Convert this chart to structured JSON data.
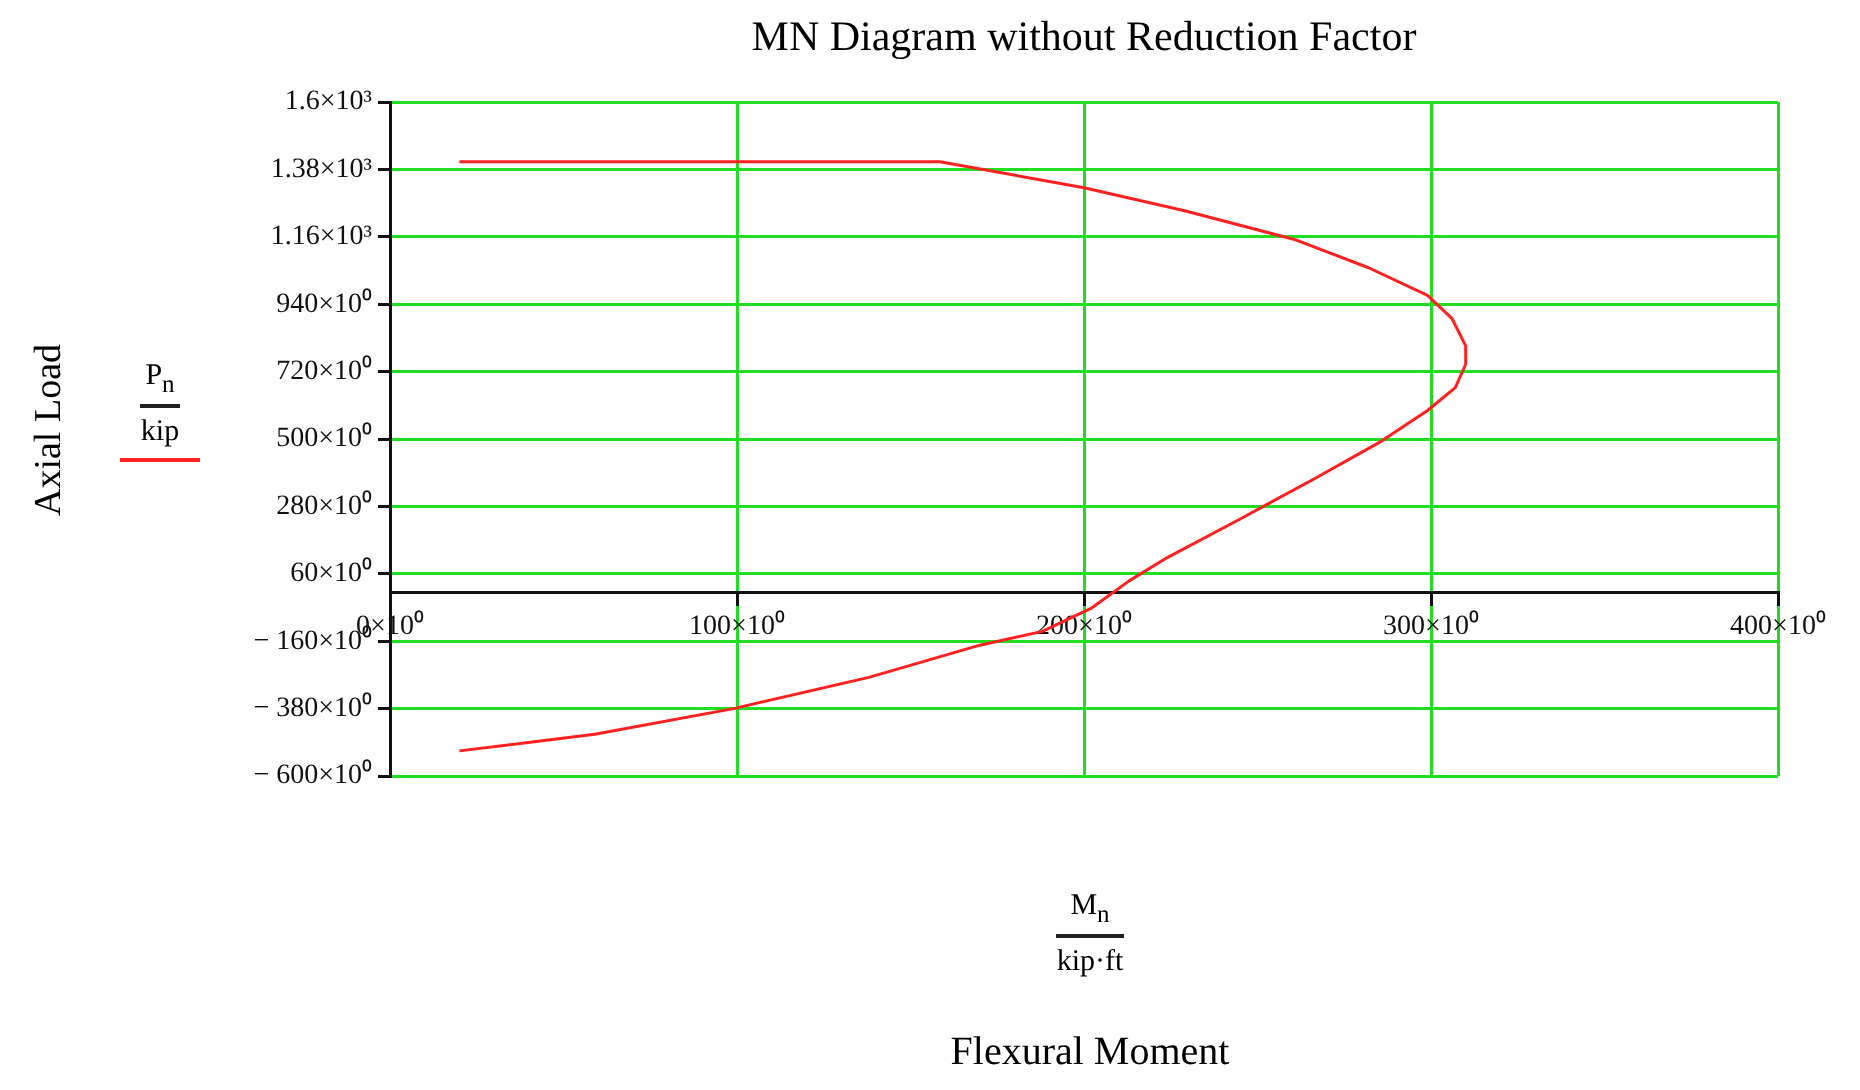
{
  "chart_data": {
    "type": "line",
    "title": "MN Diagram without Reduction Factor",
    "ylabel": "Axial Load",
    "annotations": [
      "kip",
      "M$_{n}$",
      "kip·ft",
      "Flexural Moment"
    ],
    "series": [
      {
        "name": "P$_{n}$",
        "color": "#ff2020",
        "x": [
          20,
          158.5,
          200,
          229,
          261,
          282,
          299,
          306,
          310,
          310,
          307,
          299,
          285,
          266,
          245,
          224,
          213,
          202,
          188,
          170,
          138,
          99,
          59,
          20
        ],
        "values": [
          1405,
          1405,
          1320,
          1245,
          1150,
          1059,
          969,
          894,
          804,
          744,
          668,
          593,
          488,
          368,
          239,
          113,
          37,
          -53,
          -128,
          -173,
          -278,
          -380,
          -464,
          -518
        ]
      }
    ],
    "xlim": [
      0,
      400
    ],
    "xticks": [
      {
        "value": 0,
        "label": "0×10⁰"
      },
      {
        "value": 100,
        "label": "100×10⁰"
      },
      {
        "value": 200,
        "label": "200×10⁰"
      },
      {
        "value": 300,
        "label": "300×10⁰"
      },
      {
        "value": 400,
        "label": "400×10⁰"
      }
    ],
    "ylim": [
      -600,
      1600
    ],
    "yticks": [
      {
        "value": -600,
        "label": "− 600×10⁰"
      },
      {
        "value": -380,
        "label": "− 380×10⁰"
      },
      {
        "value": -160,
        "label": "− 160×10⁰"
      },
      {
        "value": 60,
        "label": "60×10⁰"
      },
      {
        "value": 280,
        "label": "280×10⁰"
      },
      {
        "value": 500,
        "label": "500×10⁰"
      },
      {
        "value": 720,
        "label": "720×10⁰"
      },
      {
        "value": 940,
        "label": "940×10⁰"
      },
      {
        "value": 1160,
        "label": "1.16×10³"
      },
      {
        "value": 1380,
        "label": "1.38×10³"
      },
      {
        "value": 1600,
        "label": "1.6×10³"
      }
    ],
    "grid": true,
    "marker": "none",
    "line_style": "solid"
  }
}
